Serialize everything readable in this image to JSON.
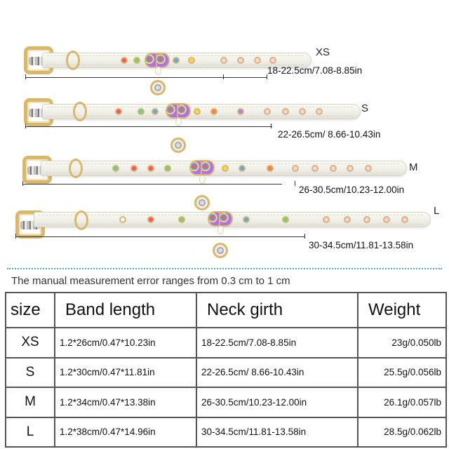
{
  "collars": [
    {
      "size": "XS",
      "range": "18-22.5cm/7.08-8.85in"
    },
    {
      "size": "S",
      "range": "22-26.5cm/ 8.66-10.43in"
    },
    {
      "size": "M",
      "range": "26-30.5cm/10.23-12.00in"
    },
    {
      "size": "L",
      "range": "30-34.5cm/11.81-13.58in"
    }
  ],
  "note": "The manual measurement error ranges from 0.3 cm to 1 cm",
  "table": {
    "headers": [
      "size",
      "Band length",
      "Neck girth",
      "Weight"
    ],
    "rows": [
      [
        "XS",
        "1.2*26cm/0.47*10.23in",
        "18-22.5cm/7.08-8.85in",
        "23g/0.050lb"
      ],
      [
        "S",
        "1.2*30cm/0.47*11.81in",
        "22-26.5cm/ 8.66-10.43in",
        "25.5g/0.056lb"
      ],
      [
        "M",
        "1.2*34cm/0.47*13.38in",
        "26-30.5cm/10.23-12.00in",
        "26.1g/0.057lb"
      ],
      [
        "L",
        "1.2*38cm/0.47*14.96in",
        "30-34.5cm/11.81-13.58in",
        "28.5g/0.062lb"
      ]
    ]
  },
  "colors": {
    "strap": "#f4f3ec",
    "gold": "#d9b86a",
    "separator": "#4aa6c8",
    "border": "#555555"
  }
}
